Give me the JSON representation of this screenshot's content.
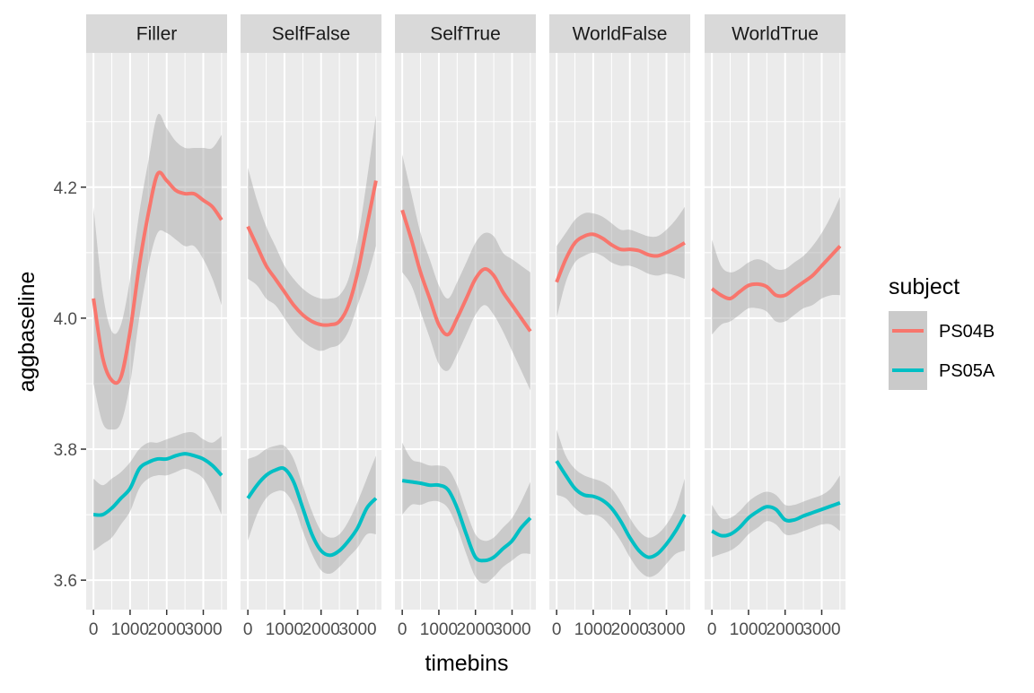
{
  "chart_data": {
    "type": "line",
    "xlabel": "timebins",
    "ylabel": "aggbaseline",
    "xlim": [
      -200,
      3650
    ],
    "ylim": [
      3.555,
      4.405
    ],
    "x_ticks": [
      0,
      1000,
      2000,
      3000
    ],
    "x_tick_labels": [
      "0",
      "1000",
      "2000",
      "3000"
    ],
    "y_ticks": [
      3.6,
      3.8,
      4.0,
      4.2
    ],
    "y_tick_labels": [
      "3.6",
      "3.8",
      "4.0",
      "4.2"
    ],
    "facets": [
      "Filler",
      "SelfFalse",
      "SelfTrue",
      "WorldFalse",
      "WorldTrue"
    ],
    "legend": {
      "title": "subject",
      "position": "right",
      "entries": [
        {
          "name": "PS04B",
          "color": "#F8766D"
        },
        {
          "name": "PS05A",
          "color": "#00BFC4"
        }
      ]
    },
    "grid": true,
    "panels": [
      {
        "facet": "Filler",
        "x": [
          0,
          250,
          500,
          750,
          1000,
          1250,
          1500,
          1750,
          2000,
          2250,
          2500,
          2750,
          3000,
          3250,
          3500
        ],
        "series": [
          {
            "name": "PS04B",
            "y": [
              4.03,
              3.94,
              3.905,
              3.91,
              3.98,
              4.08,
              4.16,
              4.22,
              4.21,
              4.195,
              4.19,
              4.19,
              4.18,
              4.17,
              4.15
            ],
            "lower": [
              3.9,
              3.84,
              3.83,
              3.84,
              3.9,
              4.0,
              4.08,
              4.13,
              4.13,
              4.12,
              4.11,
              4.11,
              4.09,
              4.06,
              4.02
            ],
            "upper": [
              4.17,
              4.04,
              3.98,
              3.99,
              4.06,
              4.16,
              4.24,
              4.31,
              4.29,
              4.27,
              4.26,
              4.26,
              4.26,
              4.26,
              4.28
            ]
          },
          {
            "name": "PS05A",
            "y": [
              3.7,
              3.7,
              3.71,
              3.725,
              3.74,
              3.77,
              3.78,
              3.785,
              3.785,
              3.79,
              3.793,
              3.79,
              3.785,
              3.775,
              3.76
            ],
            "lower": [
              3.645,
              3.655,
              3.665,
              3.685,
              3.705,
              3.74,
              3.755,
              3.76,
              3.76,
              3.765,
              3.77,
              3.765,
              3.755,
              3.73,
              3.7
            ],
            "upper": [
              3.755,
              3.745,
              3.755,
              3.765,
              3.78,
              3.8,
              3.81,
              3.81,
              3.815,
              3.82,
              3.825,
              3.825,
              3.815,
              3.81,
              3.82
            ]
          }
        ]
      },
      {
        "facet": "SelfFalse",
        "x": [
          0,
          250,
          500,
          750,
          1000,
          1250,
          1500,
          1750,
          2000,
          2250,
          2500,
          2750,
          3000,
          3250,
          3500
        ],
        "series": [
          {
            "name": "PS04B",
            "y": [
              4.14,
              4.11,
              4.08,
              4.06,
              4.04,
              4.02,
              4.005,
              3.995,
              3.99,
              3.99,
              3.995,
              4.02,
              4.07,
              4.14,
              4.21
            ],
            "lower": [
              4.06,
              4.05,
              4.03,
              4.02,
              4.0,
              3.98,
              3.965,
              3.955,
              3.95,
              3.955,
              3.96,
              3.98,
              4.02,
              4.06,
              4.11
            ],
            "upper": [
              4.23,
              4.18,
              4.14,
              4.11,
              4.08,
              4.06,
              4.045,
              4.035,
              4.03,
              4.03,
              4.035,
              4.06,
              4.12,
              4.21,
              4.31
            ]
          },
          {
            "name": "PS05A",
            "y": [
              3.725,
              3.745,
              3.76,
              3.768,
              3.77,
              3.75,
              3.71,
              3.67,
              3.645,
              3.638,
              3.645,
              3.66,
              3.68,
              3.71,
              3.725
            ],
            "lower": [
              3.66,
              3.7,
              3.725,
              3.735,
              3.735,
              3.715,
              3.675,
              3.64,
              3.615,
              3.61,
              3.62,
              3.635,
              3.65,
              3.67,
              3.67
            ],
            "upper": [
              3.785,
              3.79,
              3.8,
              3.805,
              3.805,
              3.785,
              3.745,
              3.705,
              3.675,
              3.665,
              3.67,
              3.69,
              3.72,
              3.755,
              3.79
            ]
          }
        ]
      },
      {
        "facet": "SelfTrue",
        "x": [
          0,
          250,
          500,
          750,
          1000,
          1250,
          1500,
          1750,
          2000,
          2250,
          2500,
          2750,
          3000,
          3250,
          3500
        ],
        "series": [
          {
            "name": "PS04B",
            "y": [
              4.165,
              4.12,
              4.07,
              4.03,
              3.99,
              3.975,
              4.0,
              4.03,
              4.06,
              4.075,
              4.065,
              4.04,
              4.02,
              4.0,
              3.98
            ],
            "lower": [
              4.07,
              4.05,
              4.01,
              3.97,
              3.93,
              3.92,
              3.945,
              3.975,
              4.005,
              4.02,
              4.005,
              3.98,
              3.95,
              3.92,
              3.89
            ],
            "upper": [
              4.25,
              4.19,
              4.13,
              4.09,
              4.05,
              4.03,
              4.055,
              4.085,
              4.115,
              4.13,
              4.125,
              4.1,
              4.09,
              4.08,
              4.07
            ]
          },
          {
            "name": "PS05A",
            "y": [
              3.752,
              3.75,
              3.748,
              3.745,
              3.745,
              3.738,
              3.71,
              3.67,
              3.635,
              3.63,
              3.635,
              3.648,
              3.66,
              3.68,
              3.695
            ],
            "lower": [
              3.7,
              3.715,
              3.715,
              3.72,
              3.72,
              3.71,
              3.68,
              3.64,
              3.605,
              3.595,
              3.605,
              3.62,
              3.63,
              3.64,
              3.64
            ],
            "upper": [
              3.81,
              3.785,
              3.78,
              3.775,
              3.775,
              3.77,
              3.745,
              3.705,
              3.67,
              3.66,
              3.665,
              3.68,
              3.695,
              3.72,
              3.75
            ]
          }
        ]
      },
      {
        "facet": "WorldFalse",
        "x": [
          0,
          250,
          500,
          750,
          1000,
          1250,
          1500,
          1750,
          2000,
          2250,
          2500,
          2750,
          3000,
          3250,
          3500
        ],
        "series": [
          {
            "name": "PS04B",
            "y": [
              4.055,
              4.09,
              4.115,
              4.125,
              4.128,
              4.122,
              4.112,
              4.105,
              4.105,
              4.103,
              4.097,
              4.095,
              4.1,
              4.107,
              4.115
            ],
            "lower": [
              4.0,
              4.055,
              4.085,
              4.095,
              4.1,
              4.095,
              4.085,
              4.08,
              4.08,
              4.075,
              4.068,
              4.065,
              4.068,
              4.065,
              4.06
            ],
            "upper": [
              4.11,
              4.13,
              4.15,
              4.16,
              4.16,
              4.155,
              4.145,
              4.135,
              4.135,
              4.13,
              4.125,
              4.125,
              4.135,
              4.15,
              4.17
            ]
          },
          {
            "name": "PS05A",
            "y": [
              3.782,
              3.76,
              3.74,
              3.73,
              3.728,
              3.722,
              3.71,
              3.69,
              3.665,
              3.645,
              3.635,
              3.64,
              3.655,
              3.675,
              3.7
            ],
            "lower": [
              3.73,
              3.725,
              3.71,
              3.7,
              3.7,
              3.695,
              3.68,
              3.66,
              3.635,
              3.615,
              3.605,
              3.61,
              3.625,
              3.64,
              3.645
            ],
            "upper": [
              3.83,
              3.79,
              3.77,
              3.76,
              3.755,
              3.75,
              3.74,
              3.72,
              3.695,
              3.675,
              3.665,
              3.67,
              3.685,
              3.71,
              3.755
            ]
          }
        ]
      },
      {
        "facet": "WorldTrue",
        "x": [
          0,
          250,
          500,
          750,
          1000,
          1250,
          1500,
          1750,
          2000,
          2250,
          2500,
          2750,
          3000,
          3250,
          3500
        ],
        "series": [
          {
            "name": "PS04B",
            "y": [
              4.045,
              4.035,
              4.03,
              4.04,
              4.05,
              4.052,
              4.048,
              4.035,
              4.035,
              4.045,
              4.055,
              4.065,
              4.08,
              4.095,
              4.11
            ],
            "lower": [
              3.975,
              3.99,
              3.995,
              4.005,
              4.015,
              4.015,
              4.01,
              3.995,
              3.995,
              4.005,
              4.015,
              4.02,
              4.03,
              4.035,
              4.035
            ],
            "upper": [
              4.12,
              4.08,
              4.07,
              4.075,
              4.085,
              4.09,
              4.085,
              4.075,
              4.075,
              4.085,
              4.095,
              4.11,
              4.13,
              4.155,
              4.185
            ]
          },
          {
            "name": "PS05A",
            "y": [
              3.675,
              3.668,
              3.67,
              3.68,
              3.695,
              3.705,
              3.712,
              3.708,
              3.692,
              3.692,
              3.698,
              3.703,
              3.708,
              3.713,
              3.718
            ],
            "lower": [
              3.635,
              3.64,
              3.645,
              3.655,
              3.67,
              3.68,
              3.69,
              3.685,
              3.67,
              3.67,
              3.675,
              3.68,
              3.685,
              3.685,
              3.675
            ],
            "upper": [
              3.715,
              3.695,
              3.695,
              3.705,
              3.72,
              3.73,
              3.735,
              3.73,
              3.715,
              3.715,
              3.72,
              3.725,
              3.73,
              3.74,
              3.76
            ]
          }
        ]
      }
    ]
  }
}
